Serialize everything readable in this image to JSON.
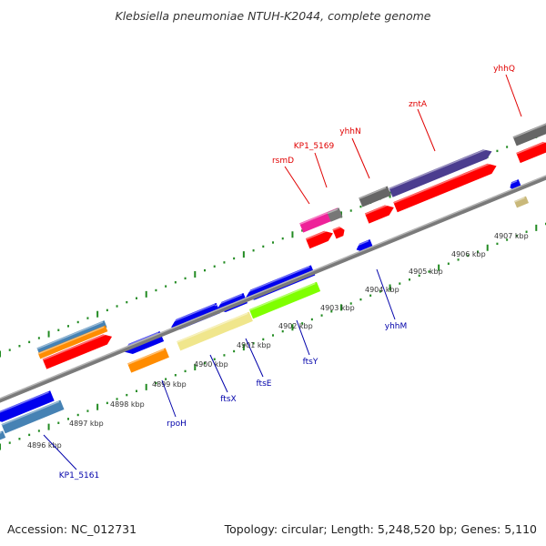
{
  "title": "Klebsiella pneumoniae NTUH-K2044, complete genome",
  "footer": {
    "accession": "Accession: NC_012731",
    "summary": "Topology: circular; Length: 5,248,520 bp; Genes: 5,110"
  },
  "colors": {
    "backbone": "#8c8c8c",
    "tick": "#228b22",
    "forward_label": "#e00000",
    "reverse_label": "#0000aa"
  },
  "position_labels": [
    "4896 kbp",
    "4897 kbp",
    "4898 kbp",
    "4899 kbp",
    "4900 kbp",
    "4901 kbp",
    "4902 kbp",
    "4903 kbp",
    "4904 kbp",
    "4905 kbp",
    "4906 kbp",
    "4907 kbp"
  ],
  "forward_genes": [
    {
      "label": "rsmD",
      "color": "#ee2299"
    },
    {
      "label": "KP1_5169",
      "color": "#ff0000"
    },
    {
      "label": "yhhN",
      "color": "#ff0000"
    },
    {
      "label": "zntA",
      "color": "#4b3d8f"
    },
    {
      "label": "yhhQ",
      "color": "#ff0000"
    }
  ],
  "reverse_genes": [
    {
      "label": "KP1_5161",
      "color": "#4682b4"
    },
    {
      "label": "rpoH",
      "color": "#ff8c00"
    },
    {
      "label": "ftsX",
      "color": "#f0e68c"
    },
    {
      "label": "ftsE",
      "color": "#0000ee"
    },
    {
      "label": "ftsY",
      "color": "#7fff00"
    },
    {
      "label": "yhhM",
      "color": "#0000ee"
    }
  ]
}
